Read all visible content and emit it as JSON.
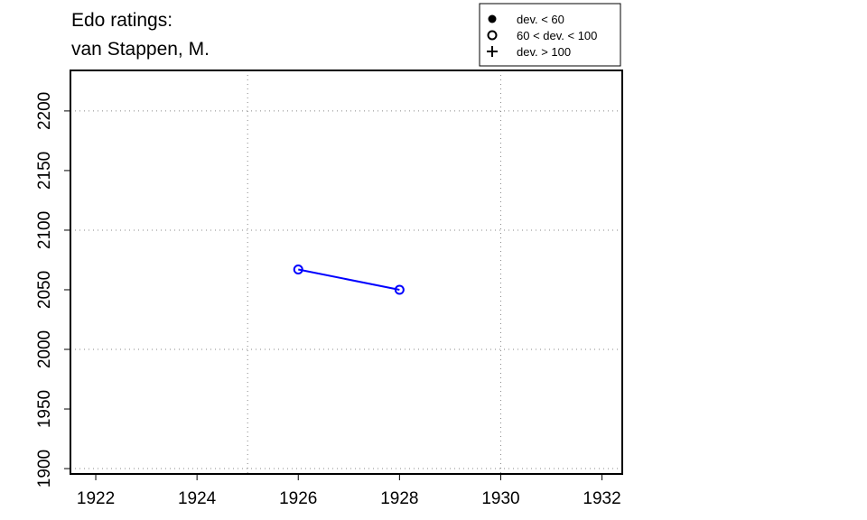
{
  "chart_data": {
    "type": "line",
    "title": [
      "Edo ratings:",
      "van Stappen, M."
    ],
    "x": [
      1926,
      1928
    ],
    "series": [
      {
        "color": "#0000ff",
        "marker": "open-circle",
        "values": [
          2067,
          2050
        ]
      }
    ],
    "xlim": [
      1921.5,
      1932.4
    ],
    "ylim": [
      1895.5,
      2234
    ],
    "xticks": [
      1922,
      1924,
      1926,
      1928,
      1930,
      1932
    ],
    "yticks": [
      1900,
      1950,
      2000,
      2050,
      2100,
      2150,
      2200
    ],
    "xgrid": [
      1925,
      1930
    ],
    "ygrid": [
      1900,
      2000,
      2100,
      2200
    ],
    "legend": [
      {
        "label": "dev. < 60",
        "symbol": "filled-circle"
      },
      {
        "label": "60 < dev. < 100",
        "symbol": "open-circle"
      },
      {
        "label": "dev. > 100",
        "symbol": "plus"
      }
    ],
    "legend_position": "top-right"
  }
}
